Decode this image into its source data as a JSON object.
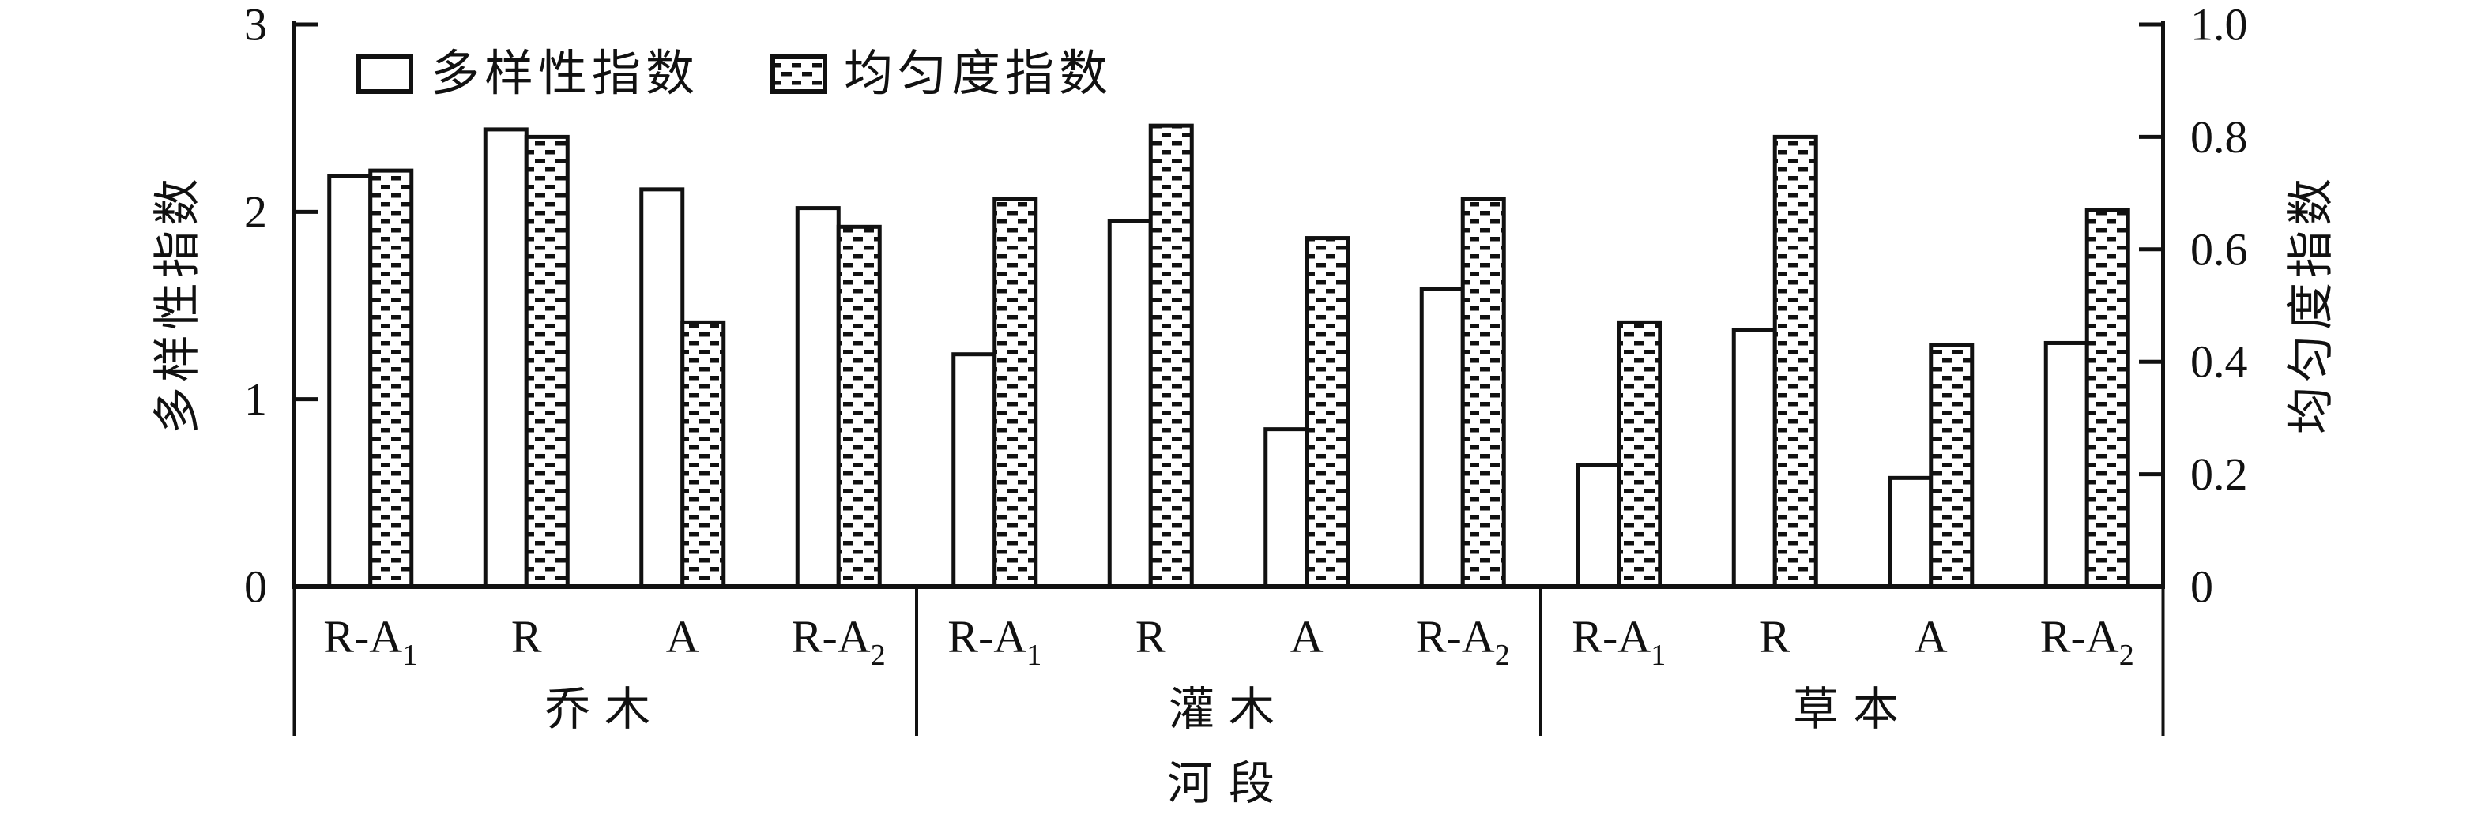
{
  "figure": {
    "background": "#ffffff",
    "ink_color": "#111111"
  },
  "chart_data": {
    "type": "bar",
    "title": "",
    "xlabel": "河段",
    "ylabel_left": "多样性指数",
    "ylabel_right": "均匀度指数",
    "legend": [
      "多样性指数",
      "均匀度指数"
    ],
    "legend_position": "top-left-inside",
    "grid": false,
    "left_axis": {
      "label": "多样性指数",
      "min": 0,
      "max": 3,
      "ticks": [
        0,
        1,
        2,
        3
      ],
      "tick_labels": [
        "0",
        "1",
        "2",
        "3"
      ]
    },
    "right_axis": {
      "label": "均匀度指数",
      "min": 0,
      "max": 1.0,
      "ticks": [
        0,
        0.2,
        0.4,
        0.6,
        0.8,
        1.0
      ],
      "tick_labels": [
        "0",
        "0.2",
        "0.4",
        "0.6",
        "0.8",
        "1.0"
      ]
    },
    "series_info": [
      {
        "name": "多样性指数",
        "axis": "left",
        "style": "white-bar"
      },
      {
        "name": "均匀度指数",
        "axis": "right",
        "style": "hatched-bar"
      }
    ],
    "groups": [
      {
        "label": "乔木",
        "categories": [
          "R-A₁",
          "R",
          "A",
          "R-A₂"
        ],
        "diversity": [
          2.19,
          2.44,
          2.12,
          2.02
        ],
        "evenness": [
          0.74,
          0.8,
          0.47,
          0.64
        ]
      },
      {
        "label": "灌木",
        "categories": [
          "R-A₁",
          "R",
          "A",
          "R-A₂"
        ],
        "diversity": [
          1.24,
          1.95,
          0.84,
          1.59
        ],
        "evenness": [
          0.69,
          0.82,
          0.62,
          0.69
        ]
      },
      {
        "label": "草本",
        "categories": [
          "R-A₁",
          "R",
          "A",
          "R-A₂"
        ],
        "diversity": [
          0.65,
          1.37,
          0.58,
          1.3
        ],
        "evenness": [
          0.47,
          0.8,
          0.43,
          0.67
        ]
      }
    ]
  }
}
